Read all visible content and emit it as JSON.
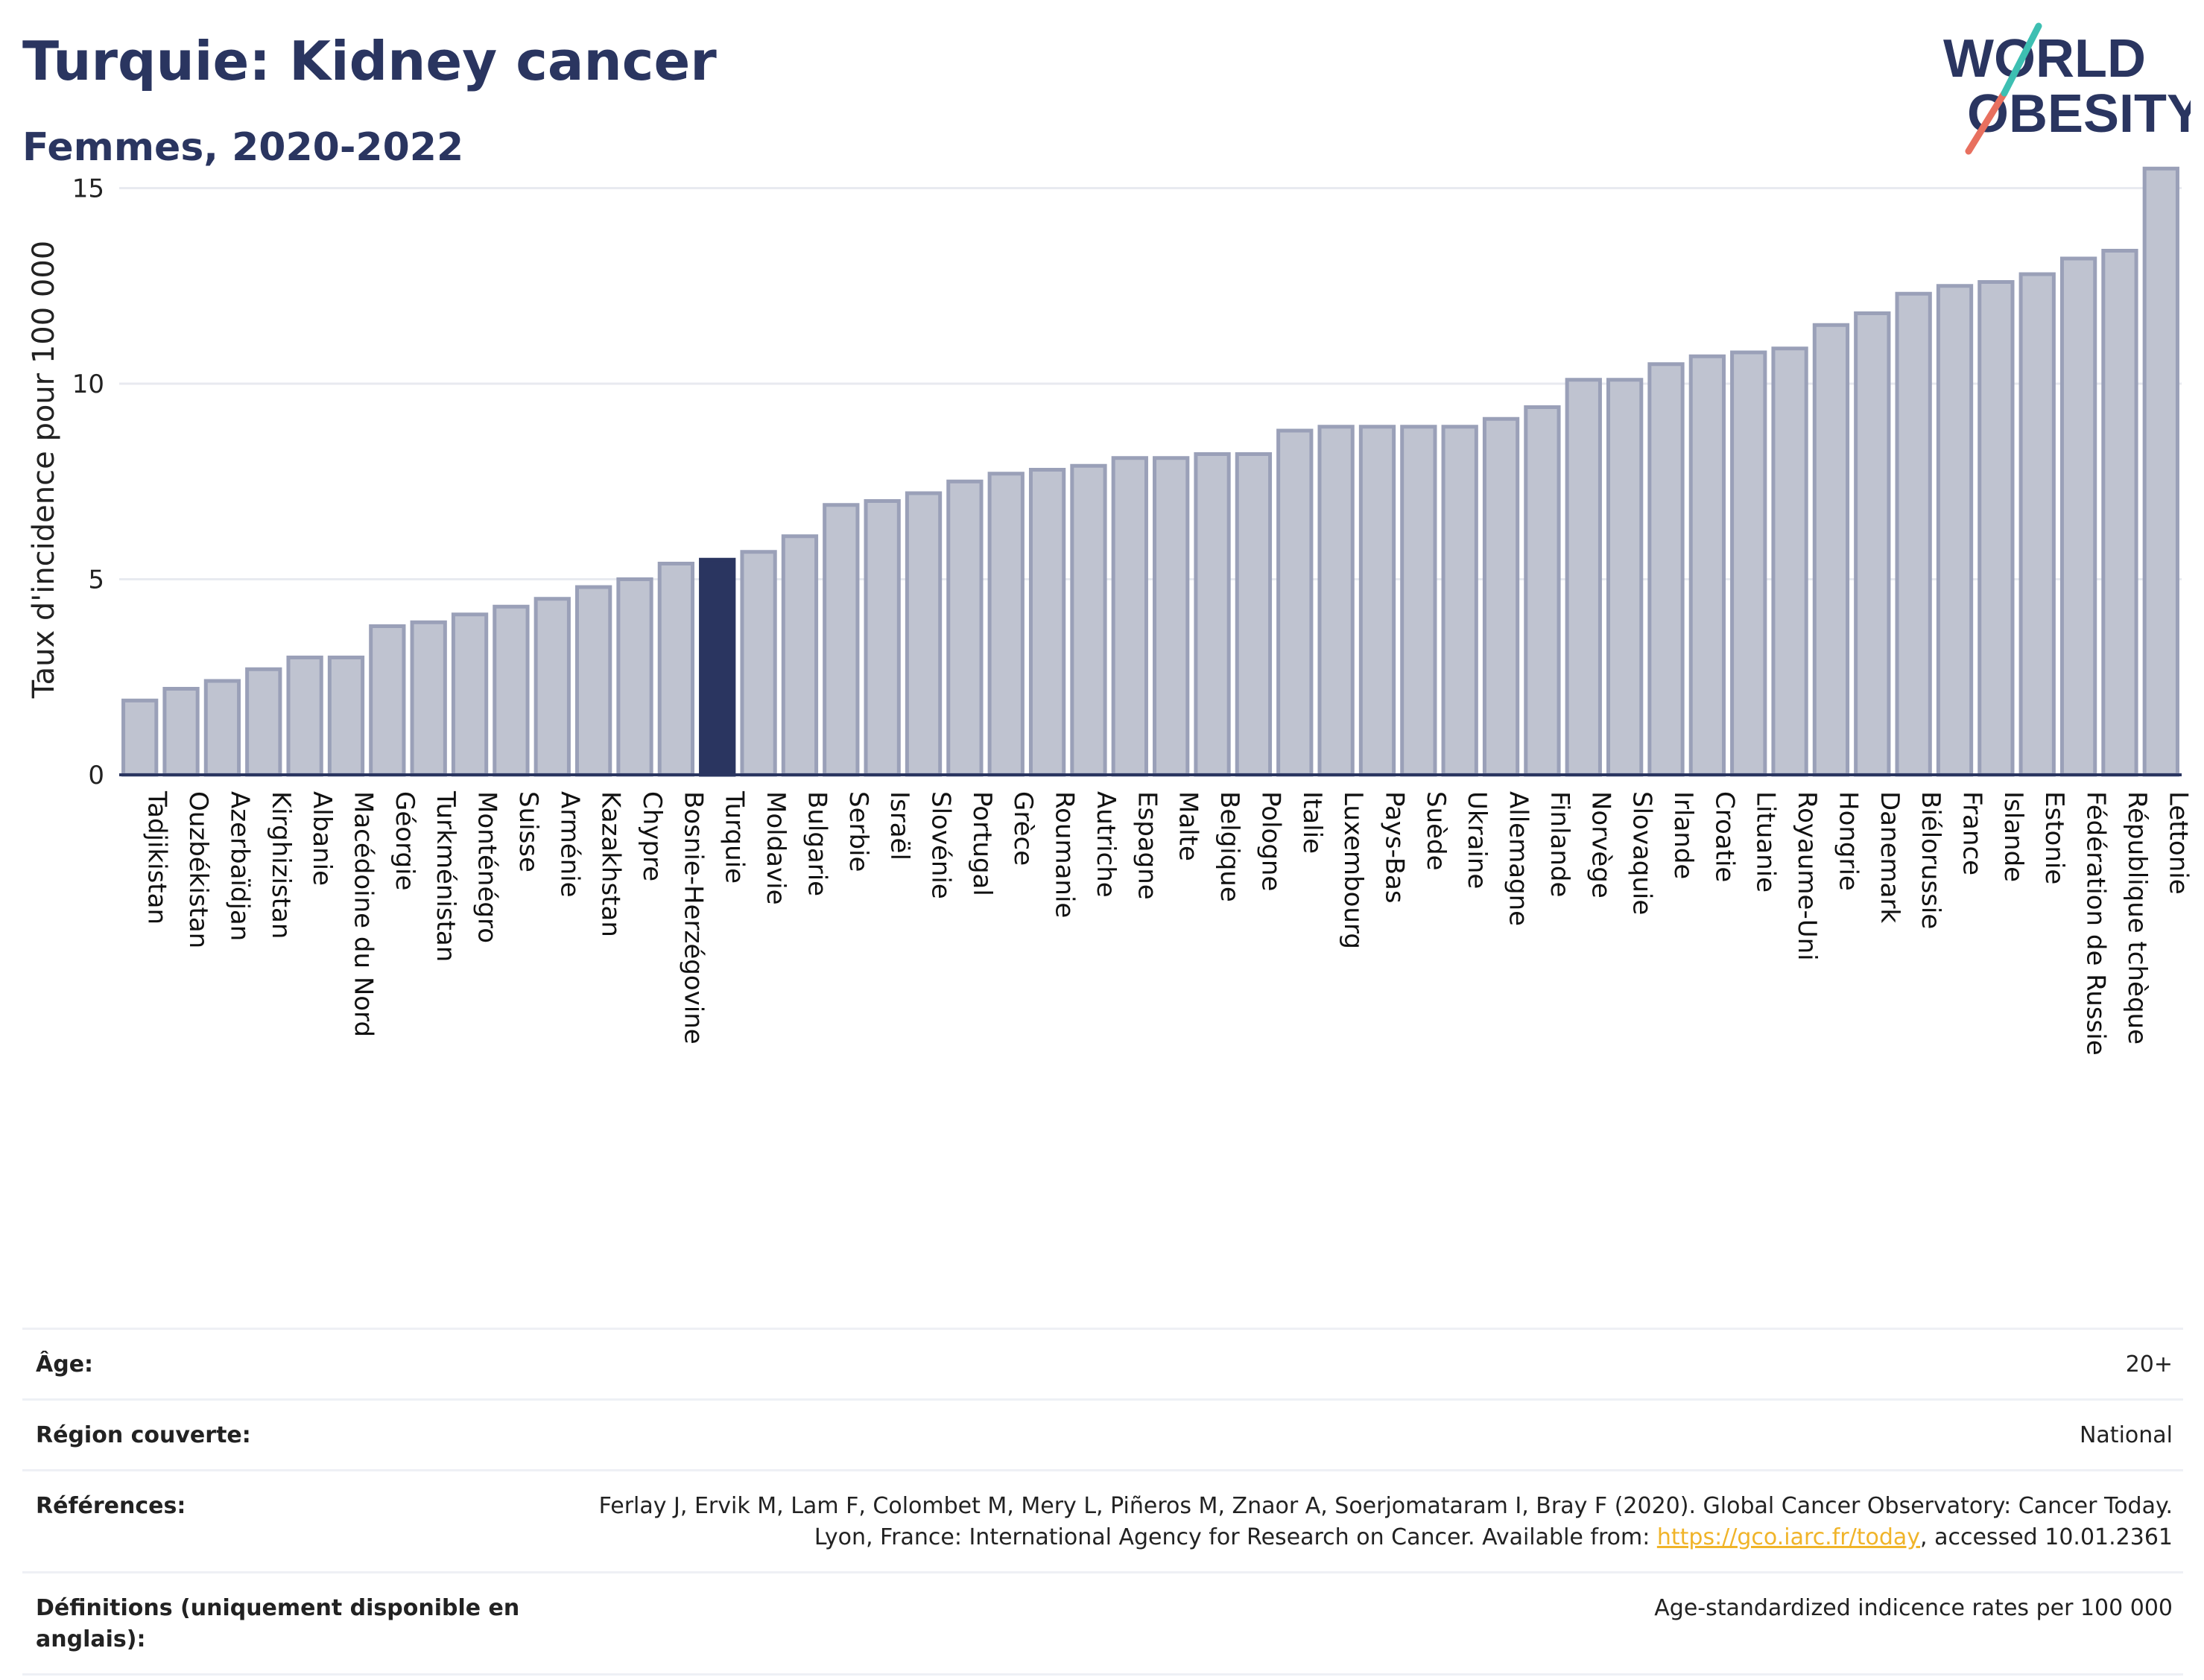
{
  "header": {
    "title": "Turquie: Kidney cancer",
    "subtitle": "Femmes, 2020-2022",
    "logo_line1": "WORLD",
    "logo_line2": "OBESITY"
  },
  "colors": {
    "bar_fill": "#bfc3d0",
    "bar_stroke": "#9aa0b8",
    "highlight": "#2a3560",
    "grid": "#e8eaf0",
    "logo_navy": "#2a3560",
    "logo_teal": "#3dbfb2",
    "logo_coral": "#e8705f"
  },
  "chart_data": {
    "type": "bar",
    "ylabel": "Taux d'incidence pour 100 000",
    "xlabel": "",
    "ylim": [
      0,
      16
    ],
    "yticks": [
      0,
      5,
      10,
      15
    ],
    "highlight": "Turquie",
    "categories": [
      "Tadjikistan",
      "Ouzbékistan",
      "Azerbaïdjan",
      "Kirghizistan",
      "Albanie",
      "Macédoine du Nord",
      "Géorgie",
      "Turkménistan",
      "Monténégro",
      "Suisse",
      "Arménie",
      "Kazakhstan",
      "Chypre",
      "Bosnie-Herzégovine",
      "Turquie",
      "Moldavie",
      "Bulgarie",
      "Serbie",
      "Israël",
      "Slovénie",
      "Portugal",
      "Grèce",
      "Roumanie",
      "Autriche",
      "Espagne",
      "Malte",
      "Belgique",
      "Pologne",
      "Italie",
      "Luxembourg",
      "Pays-Bas",
      "Suède",
      "Ukraine",
      "Allemagne",
      "Finlande",
      "Norvège",
      "Slovaquie",
      "Irlande",
      "Croatie",
      "Lituanie",
      "Royaume-Uni",
      "Hongrie",
      "Danemark",
      "Biélorussie",
      "France",
      "Islande",
      "Estonie",
      "Fédération de Russie",
      "République tchèque",
      "Lettonie"
    ],
    "values": [
      1.9,
      2.2,
      2.4,
      2.7,
      3.0,
      3.0,
      3.8,
      3.9,
      4.1,
      4.3,
      4.5,
      4.8,
      5.0,
      5.4,
      5.5,
      5.7,
      6.1,
      6.9,
      7.0,
      7.2,
      7.5,
      7.7,
      7.8,
      7.9,
      8.1,
      8.1,
      8.2,
      8.2,
      8.8,
      8.9,
      8.9,
      8.9,
      8.9,
      9.1,
      9.4,
      10.1,
      10.1,
      10.5,
      10.7,
      10.8,
      10.9,
      11.5,
      11.8,
      12.3,
      12.5,
      12.6,
      12.8,
      13.2,
      13.4,
      15.5
    ]
  },
  "meta": {
    "age_label": "Âge:",
    "age_value": "20+",
    "region_label": "Région couverte:",
    "region_value": "National",
    "refs_label": "Références:",
    "refs_text_1": "Ferlay J, Ervik M, Lam F, Colombet M, Mery L, Piñeros M, Znaor A, Soerjomataram I, Bray F (2020). Global Cancer Observatory: Cancer Today. Lyon, France: International Agency for Research on Cancer. Available from: ",
    "refs_link": "https://gco.iarc.fr/today",
    "refs_text_2": ", accessed 10.01.2361",
    "defs_label": "Définitions (uniquement disponible en anglais):",
    "defs_value": "Age-standardized indicence rates per 100 000"
  }
}
